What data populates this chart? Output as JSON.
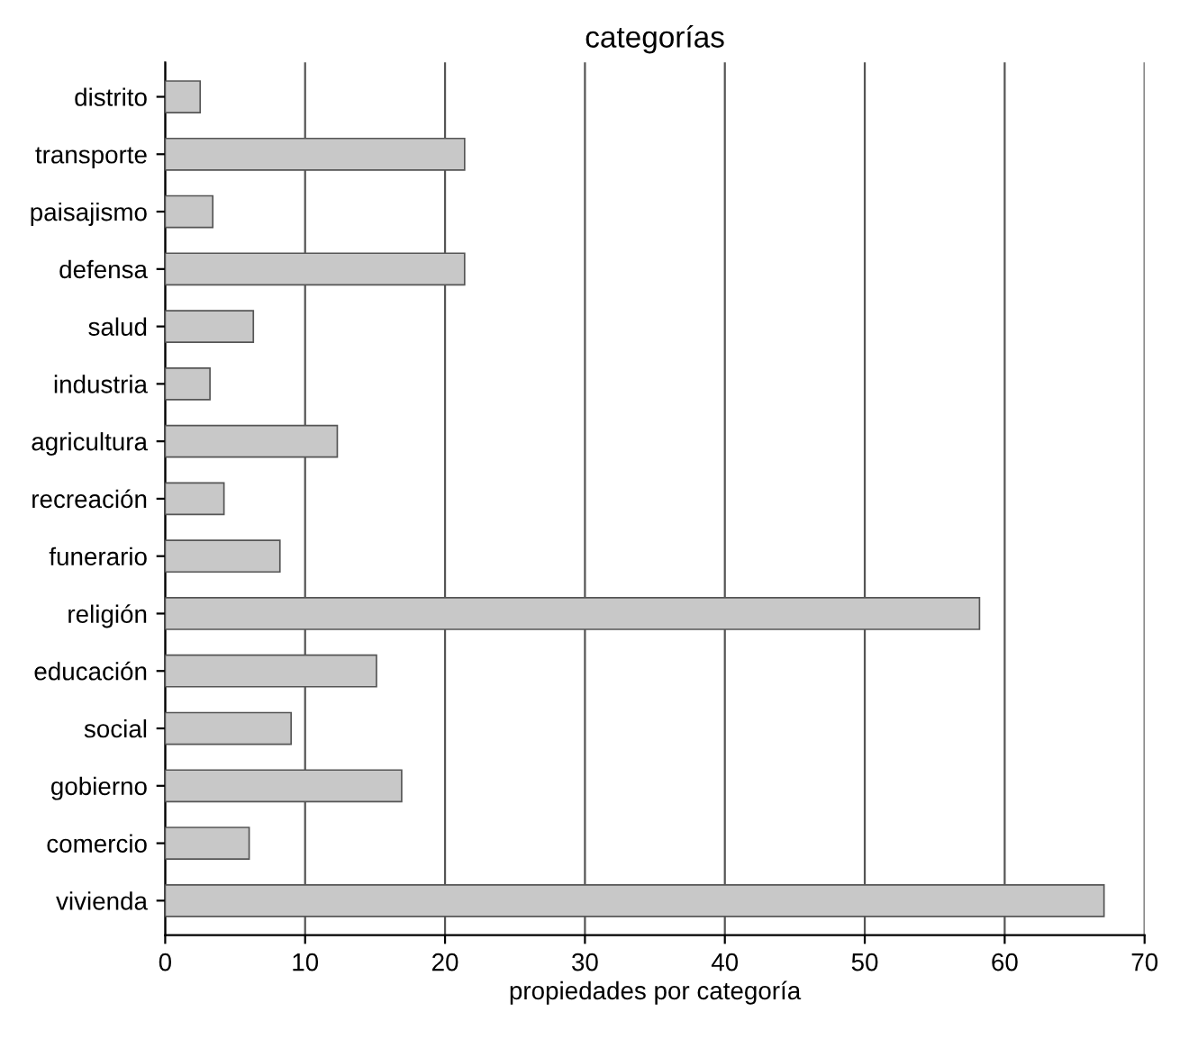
{
  "chart_data": {
    "type": "bar",
    "orientation": "horizontal",
    "title": "categorías",
    "xlabel": "propiedades por categoría",
    "categories": [
      "distrito",
      "transporte",
      "paisajismo",
      "defensa",
      "salud",
      "industria",
      "agricultura",
      "recreación",
      "funerario",
      "religión",
      "educación",
      "social",
      "gobierno",
      "comercio",
      "vivienda"
    ],
    "values": [
      2.5,
      21.4,
      3.4,
      21.4,
      6.3,
      3.2,
      12.3,
      4.2,
      8.2,
      58.2,
      15.1,
      9.0,
      16.9,
      6.0,
      67.1
    ],
    "color": "#c8c8c8",
    "xlim": [
      0,
      70
    ],
    "xticks": [
      0,
      10,
      20,
      30,
      40,
      50,
      60,
      70
    ],
    "grid": "x"
  }
}
